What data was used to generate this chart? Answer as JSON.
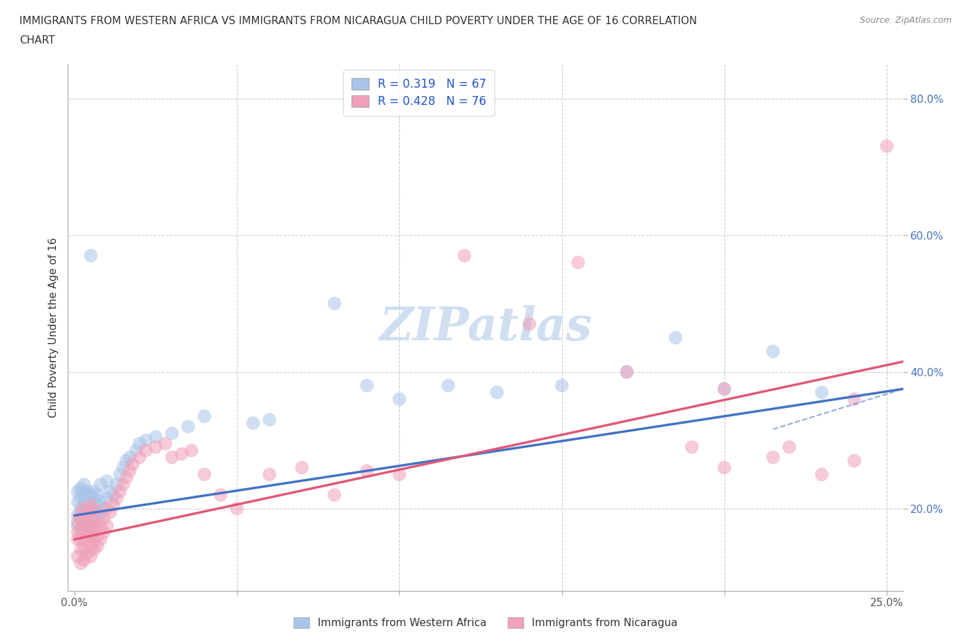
{
  "title_line1": "IMMIGRANTS FROM WESTERN AFRICA VS IMMIGRANTS FROM NICARAGUA CHILD POVERTY UNDER THE AGE OF 16 CORRELATION",
  "title_line2": "CHART",
  "source": "Source: ZipAtlas.com",
  "ylabel": "Child Poverty Under the Age of 16",
  "xlim": [
    -0.002,
    0.255
  ],
  "ylim": [
    0.08,
    0.85
  ],
  "xtick_positions": [
    0.0,
    0.05,
    0.1,
    0.15,
    0.2,
    0.25
  ],
  "ytick_positions": [
    0.2,
    0.4,
    0.6,
    0.8
  ],
  "xtick_labels": [
    "0.0%",
    "",
    "",
    "",
    "",
    "25.0%"
  ],
  "ytick_labels": [
    "20.0%",
    "40.0%",
    "60.0%",
    "80.0%"
  ],
  "series": [
    {
      "name": "Immigrants from Western Africa",
      "color": "#a8c4e8",
      "R": 0.319,
      "N": 67,
      "trend_color": "#4472c4",
      "x": [
        0.001,
        0.001,
        0.001,
        0.001,
        0.002,
        0.002,
        0.002,
        0.002,
        0.002,
        0.002,
        0.003,
        0.003,
        0.003,
        0.003,
        0.003,
        0.003,
        0.004,
        0.004,
        0.004,
        0.004,
        0.004,
        0.005,
        0.005,
        0.005,
        0.005,
        0.005,
        0.006,
        0.006,
        0.006,
        0.006,
        0.007,
        0.007,
        0.007,
        0.008,
        0.008,
        0.008,
        0.009,
        0.01,
        0.01,
        0.011,
        0.012,
        0.013,
        0.014,
        0.015,
        0.016,
        0.017,
        0.019,
        0.02,
        0.022,
        0.025,
        0.03,
        0.035,
        0.04,
        0.055,
        0.06,
        0.08,
        0.09,
        0.1,
        0.115,
        0.13,
        0.15,
        0.17,
        0.185,
        0.2,
        0.215,
        0.23,
        0.005
      ],
      "y": [
        0.175,
        0.19,
        0.21,
        0.225,
        0.17,
        0.185,
        0.2,
        0.215,
        0.225,
        0.23,
        0.175,
        0.185,
        0.195,
        0.21,
        0.22,
        0.235,
        0.175,
        0.185,
        0.2,
        0.215,
        0.225,
        0.17,
        0.185,
        0.195,
        0.215,
        0.22,
        0.18,
        0.195,
        0.21,
        0.225,
        0.19,
        0.205,
        0.22,
        0.19,
        0.21,
        0.235,
        0.2,
        0.215,
        0.24,
        0.225,
        0.22,
        0.235,
        0.25,
        0.26,
        0.27,
        0.275,
        0.285,
        0.295,
        0.3,
        0.305,
        0.31,
        0.32,
        0.335,
        0.325,
        0.33,
        0.5,
        0.38,
        0.36,
        0.38,
        0.37,
        0.38,
        0.4,
        0.45,
        0.375,
        0.43,
        0.37,
        0.57
      ],
      "trend_x": [
        0.0,
        0.255
      ],
      "trend_y": [
        0.19,
        0.375
      ],
      "trend_solid": true
    },
    {
      "name": "Immigrants from Nicaragua",
      "color": "#f0a0b8",
      "R": 0.428,
      "N": 76,
      "trend_color": "#e05878",
      "x": [
        0.001,
        0.001,
        0.001,
        0.001,
        0.002,
        0.002,
        0.002,
        0.002,
        0.002,
        0.002,
        0.003,
        0.003,
        0.003,
        0.003,
        0.003,
        0.003,
        0.004,
        0.004,
        0.004,
        0.004,
        0.005,
        0.005,
        0.005,
        0.005,
        0.005,
        0.005,
        0.006,
        0.006,
        0.006,
        0.006,
        0.006,
        0.007,
        0.007,
        0.007,
        0.008,
        0.008,
        0.009,
        0.009,
        0.01,
        0.01,
        0.011,
        0.012,
        0.013,
        0.014,
        0.015,
        0.016,
        0.017,
        0.018,
        0.02,
        0.022,
        0.025,
        0.028,
        0.03,
        0.033,
        0.036,
        0.04,
        0.045,
        0.05,
        0.06,
        0.07,
        0.08,
        0.09,
        0.1,
        0.12,
        0.14,
        0.155,
        0.17,
        0.19,
        0.2,
        0.215,
        0.23,
        0.24,
        0.25,
        0.2,
        0.22,
        0.24
      ],
      "y": [
        0.13,
        0.155,
        0.165,
        0.18,
        0.12,
        0.14,
        0.155,
        0.17,
        0.185,
        0.195,
        0.125,
        0.14,
        0.155,
        0.17,
        0.185,
        0.2,
        0.135,
        0.155,
        0.17,
        0.185,
        0.13,
        0.145,
        0.16,
        0.175,
        0.19,
        0.205,
        0.14,
        0.155,
        0.17,
        0.185,
        0.2,
        0.145,
        0.16,
        0.175,
        0.155,
        0.175,
        0.165,
        0.185,
        0.175,
        0.2,
        0.195,
        0.205,
        0.215,
        0.225,
        0.235,
        0.245,
        0.255,
        0.265,
        0.275,
        0.285,
        0.29,
        0.295,
        0.275,
        0.28,
        0.285,
        0.25,
        0.22,
        0.2,
        0.25,
        0.26,
        0.22,
        0.255,
        0.25,
        0.57,
        0.47,
        0.56,
        0.4,
        0.29,
        0.375,
        0.275,
        0.25,
        0.36,
        0.73,
        0.26,
        0.29,
        0.27
      ],
      "trend_x": [
        0.0,
        0.255
      ],
      "trend_y": [
        0.155,
        0.415
      ],
      "trend_solid": true
    }
  ],
  "watermark": "ZIPatlas",
  "watermark_color": "#d0dff0",
  "background_color": "#ffffff",
  "grid_color": "#cccccc",
  "grid_style": "--",
  "title_fontsize": 11,
  "axis_label_fontsize": 11,
  "tick_fontsize": 11,
  "tick_color": "#4472c4",
  "legend_fontsize": 12
}
